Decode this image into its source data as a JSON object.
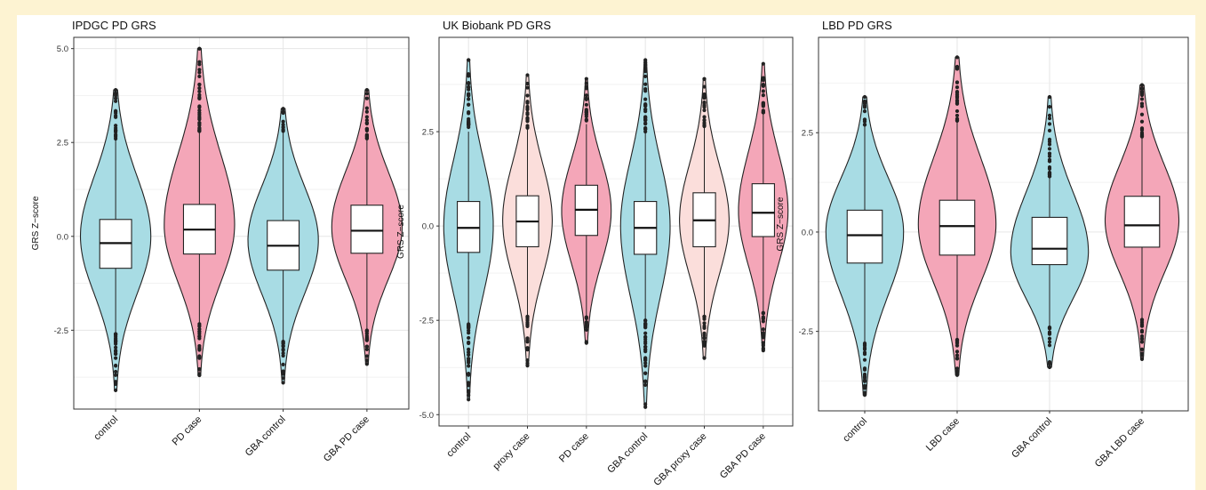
{
  "colors": {
    "control": "#a8dce4",
    "case": "#f4a6b8",
    "proxy": "#fbdedb",
    "background": "#fdf3d2"
  },
  "chart_data": [
    {
      "type": "violin",
      "title": "IPDGC PD GRS",
      "ylabel": "GRS Z−score",
      "xlabel": "",
      "yticks": [
        -2.5,
        0.0,
        2.5,
        5.0
      ],
      "ylim": [
        -4.6,
        5.3
      ],
      "grid": true,
      "categories": [
        "control",
        "PD case",
        "GBA control",
        "GBA PD case"
      ],
      "groups": [
        {
          "label": "control",
          "fill": "control",
          "median": -0.18,
          "q1": -0.85,
          "q3": 0.45,
          "lower_whisker": -2.6,
          "upper_whisker": 2.6,
          "min": -4.1,
          "max": 3.9,
          "density_peak": 0.0,
          "density_width": 1.0
        },
        {
          "label": "PD case",
          "fill": "case",
          "median": 0.18,
          "q1": -0.47,
          "q3": 0.85,
          "lower_whisker": -2.3,
          "upper_whisker": 2.8,
          "min": -3.7,
          "max": 5.0,
          "density_peak": 0.3,
          "density_width": 1.0
        },
        {
          "label": "GBA control",
          "fill": "control",
          "median": -0.25,
          "q1": -0.9,
          "q3": 0.42,
          "lower_whisker": -2.8,
          "upper_whisker": 2.8,
          "min": -3.9,
          "max": 3.4,
          "density_peak": -0.1,
          "density_width": 1.0
        },
        {
          "label": "GBA PD case",
          "fill": "case",
          "median": 0.15,
          "q1": -0.45,
          "q3": 0.83,
          "lower_whisker": -2.5,
          "upper_whisker": 2.6,
          "min": -3.4,
          "max": 3.9,
          "density_peak": 0.25,
          "density_width": 1.0
        }
      ]
    },
    {
      "type": "violin",
      "title": "UK Biobank PD GRS",
      "ylabel": "GRS Z−score",
      "xlabel": "",
      "yticks": [
        -5.0,
        -2.5,
        0.0,
        2.5
      ],
      "ylim": [
        -5.3,
        5.0
      ],
      "grid": true,
      "categories": [
        "control",
        "proxy case",
        "PD case",
        "GBA control",
        "GBA proxy case",
        "GBA PD case"
      ],
      "groups": [
        {
          "label": "control",
          "fill": "control",
          "median": -0.05,
          "q1": -0.7,
          "q3": 0.65,
          "lower_whisker": -2.6,
          "upper_whisker": 2.5,
          "min": -4.6,
          "max": 4.4,
          "density_peak": 0.0,
          "density_width": 1.0
        },
        {
          "label": "proxy case",
          "fill": "proxy",
          "median": 0.12,
          "q1": -0.55,
          "q3": 0.8,
          "lower_whisker": -2.4,
          "upper_whisker": 2.6,
          "min": -3.7,
          "max": 4.0,
          "density_peak": 0.15,
          "density_width": 1.0
        },
        {
          "label": "PD case",
          "fill": "case",
          "median": 0.43,
          "q1": -0.25,
          "q3": 1.08,
          "lower_whisker": -2.4,
          "upper_whisker": 2.7,
          "min": -3.1,
          "max": 3.9,
          "density_peak": 0.4,
          "density_width": 1.0
        },
        {
          "label": "GBA control",
          "fill": "control",
          "median": -0.05,
          "q1": -0.75,
          "q3": 0.65,
          "lower_whisker": -2.5,
          "upper_whisker": 2.5,
          "min": -4.8,
          "max": 4.4,
          "density_peak": 0.0,
          "density_width": 1.0
        },
        {
          "label": "GBA proxy case",
          "fill": "proxy",
          "median": 0.15,
          "q1": -0.55,
          "q3": 0.88,
          "lower_whisker": -2.4,
          "upper_whisker": 2.6,
          "min": -3.5,
          "max": 3.9,
          "density_peak": 0.15,
          "density_width": 1.0
        },
        {
          "label": "GBA PD case",
          "fill": "case",
          "median": 0.35,
          "q1": -0.28,
          "q3": 1.12,
          "lower_whisker": -2.3,
          "upper_whisker": 3.0,
          "min": -3.3,
          "max": 4.3,
          "density_peak": 0.4,
          "density_width": 1.0
        }
      ]
    },
    {
      "type": "violin",
      "title": "LBD PD GRS",
      "ylabel": "GRS Z−score",
      "xlabel": "",
      "yticks": [
        -2.5,
        0.0,
        2.5
      ],
      "ylim": [
        -4.5,
        4.9
      ],
      "grid": true,
      "categories": [
        "control",
        "LBD case",
        "GBA control",
        "GBA LBD case"
      ],
      "groups": [
        {
          "label": "control",
          "fill": "control",
          "median": -0.08,
          "q1": -0.78,
          "q3": 0.55,
          "lower_whisker": -2.8,
          "upper_whisker": 2.7,
          "min": -4.1,
          "max": 3.4,
          "density_peak": 0.0,
          "density_width": 1.0
        },
        {
          "label": "LBD case",
          "fill": "case",
          "median": 0.15,
          "q1": -0.58,
          "q3": 0.8,
          "lower_whisker": -2.7,
          "upper_whisker": 2.8,
          "min": -3.6,
          "max": 4.4,
          "density_peak": 0.2,
          "density_width": 1.0
        },
        {
          "label": "GBA control",
          "fill": "control",
          "median": -0.42,
          "q1": -0.82,
          "q3": 0.37,
          "lower_whisker": -2.4,
          "upper_whisker": 1.4,
          "min": -3.4,
          "max": 3.4,
          "density_peak": -0.5,
          "density_width": 1.0
        },
        {
          "label": "GBA LBD case",
          "fill": "case",
          "median": 0.17,
          "q1": -0.38,
          "q3": 0.9,
          "lower_whisker": -2.2,
          "upper_whisker": 2.4,
          "min": -3.2,
          "max": 3.7,
          "density_peak": 0.3,
          "density_width": 0.95
        }
      ]
    }
  ]
}
